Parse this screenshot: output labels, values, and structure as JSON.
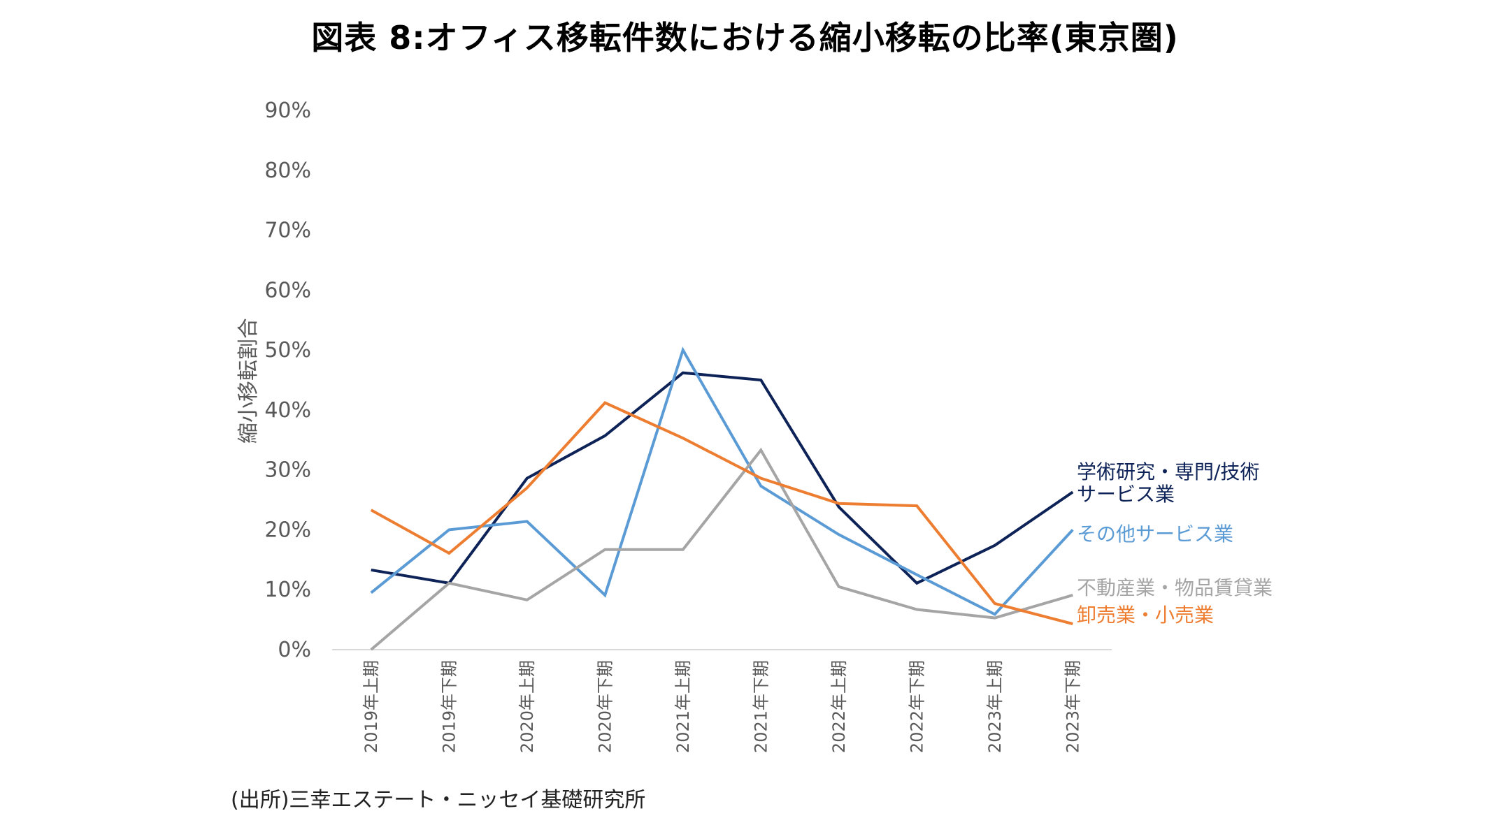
{
  "title": "図表 8:オフィス移転件数における縮小移転の比率(東京圏)",
  "source": "(出所)三幸エステート・ニッセイ基礎研究所",
  "chart_data": {
    "type": "line",
    "ylabel": "縮小移転割合",
    "ylim": [
      0,
      90
    ],
    "yticks": [
      "0%",
      "10%",
      "20%",
      "30%",
      "40%",
      "50%",
      "60%",
      "70%",
      "80%",
      "90%"
    ],
    "categories": [
      "2019年上期",
      "2019年下期",
      "2020年上期",
      "2020年下期",
      "2021年上期",
      "2021年下期",
      "2022年上期",
      "2022年下期",
      "2023年上期",
      "2023年下期"
    ],
    "series": [
      {
        "name": "学術研究・専門/技術サービス業",
        "label_lines": [
          "学術研究・専門/技術",
          "サービス業"
        ],
        "color": "#0d2257",
        "values": [
          13.3,
          11.1,
          28.6,
          35.7,
          46.2,
          45.0,
          23.8,
          11.1,
          17.4,
          26.3
        ]
      },
      {
        "name": "その他サービス業",
        "label_lines": [
          "その他サービス業"
        ],
        "color": "#5b9bd5",
        "values": [
          9.5,
          20.0,
          21.4,
          9.1,
          50.0,
          27.3,
          19.2,
          12.5,
          5.9,
          20.0
        ]
      },
      {
        "name": "不動産業・物品賃貸業",
        "label_lines": [
          "不動産業・物品賃貸業"
        ],
        "color": "#a5a5a5",
        "values": [
          0.0,
          11.1,
          8.3,
          16.7,
          16.7,
          33.3,
          10.5,
          6.7,
          5.3,
          9.1
        ]
      },
      {
        "name": "卸売業・小売業",
        "label_lines": [
          "卸売業・小売業"
        ],
        "color": "#ed7d31",
        "values": [
          23.3,
          16.1,
          27.0,
          41.2,
          35.3,
          28.6,
          24.4,
          24.0,
          7.7,
          4.3
        ]
      }
    ]
  }
}
